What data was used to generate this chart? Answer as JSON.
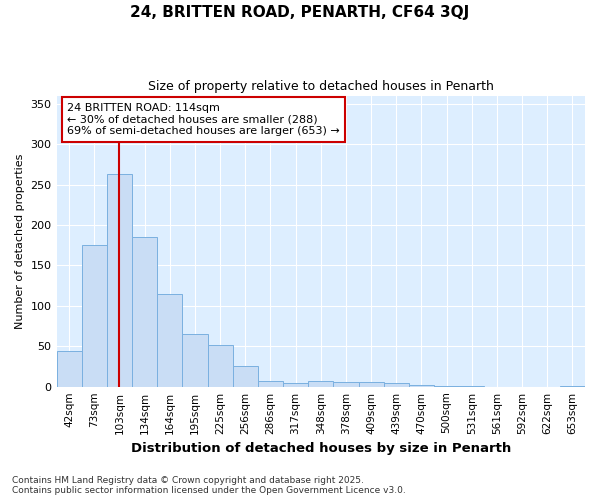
{
  "title_line1": "24, BRITTEN ROAD, PENARTH, CF64 3QJ",
  "title_line2": "Size of property relative to detached houses in Penarth",
  "xlabel": "Distribution of detached houses by size in Penarth",
  "ylabel": "Number of detached properties",
  "categories": [
    "42sqm",
    "73sqm",
    "103sqm",
    "134sqm",
    "164sqm",
    "195sqm",
    "225sqm",
    "256sqm",
    "286sqm",
    "317sqm",
    "348sqm",
    "378sqm",
    "409sqm",
    "439sqm",
    "470sqm",
    "500sqm",
    "531sqm",
    "561sqm",
    "592sqm",
    "622sqm",
    "653sqm"
  ],
  "values": [
    44,
    175,
    263,
    185,
    114,
    65,
    52,
    25,
    7,
    5,
    7,
    6,
    6,
    4,
    2,
    1,
    1,
    0,
    0,
    0,
    1
  ],
  "bar_color": "#c9ddf5",
  "bar_edge_color": "#7ab0e0",
  "bg_color": "#ddeeff",
  "fig_bg_color": "#ffffff",
  "grid_color": "#ffffff",
  "vline_x": 2,
  "vline_color": "#cc0000",
  "annotation_text": "24 BRITTEN ROAD: 114sqm\n← 30% of detached houses are smaller (288)\n69% of semi-detached houses are larger (653) →",
  "annotation_box_color": "#ffffff",
  "annotation_box_edge": "#cc0000",
  "footer_text": "Contains HM Land Registry data © Crown copyright and database right 2025.\nContains public sector information licensed under the Open Government Licence v3.0.",
  "ylim": [
    0,
    360
  ],
  "yticks": [
    0,
    50,
    100,
    150,
    200,
    250,
    300,
    350
  ]
}
